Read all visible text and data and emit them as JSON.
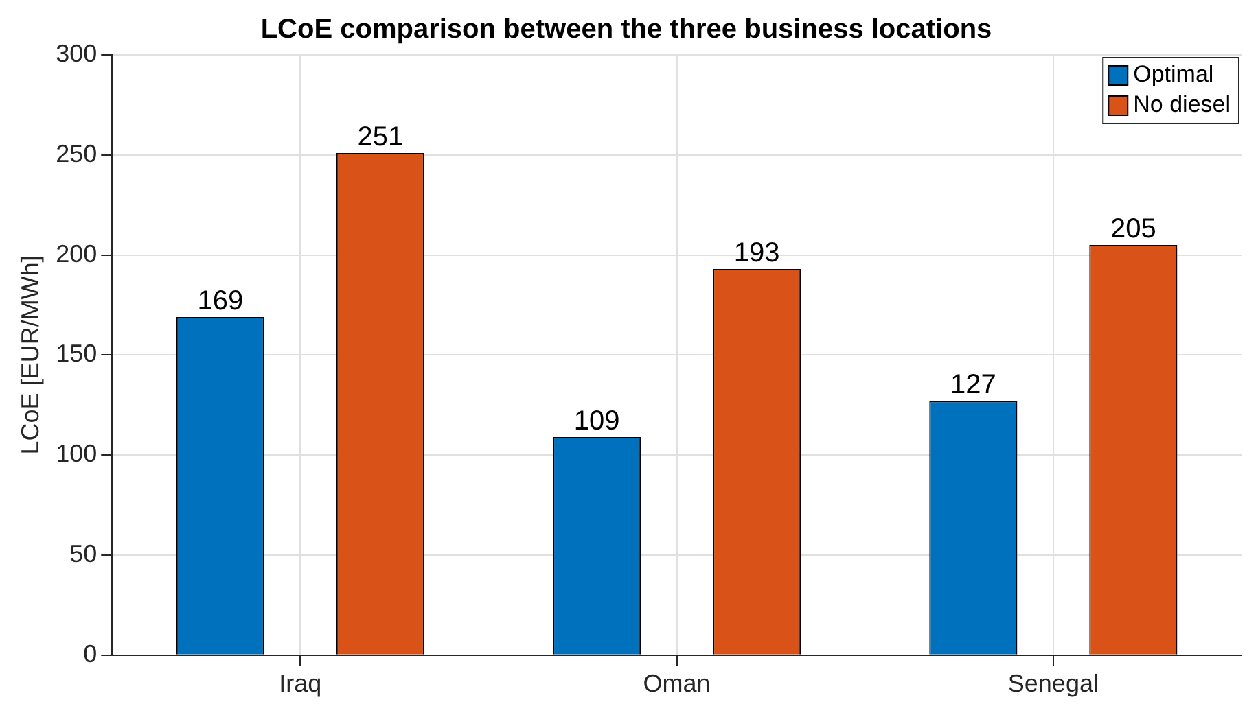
{
  "chart_data": {
    "type": "bar",
    "title": "LCoE comparison between the three business locations",
    "ylabel": "LCoE [EUR/MWh]",
    "categories": [
      "Iraq",
      "Oman",
      "Senegal"
    ],
    "series": [
      {
        "name": "Optimal",
        "color": "#0072bd",
        "values": [
          169,
          109,
          127
        ]
      },
      {
        "name": "No diesel",
        "color": "#d95319",
        "values": [
          251,
          193,
          205
        ]
      }
    ],
    "ylim": [
      0,
      300
    ],
    "yticks": [
      0,
      50,
      100,
      150,
      200,
      250,
      300
    ],
    "grid": true,
    "legend": "top right",
    "data_labels": true
  }
}
